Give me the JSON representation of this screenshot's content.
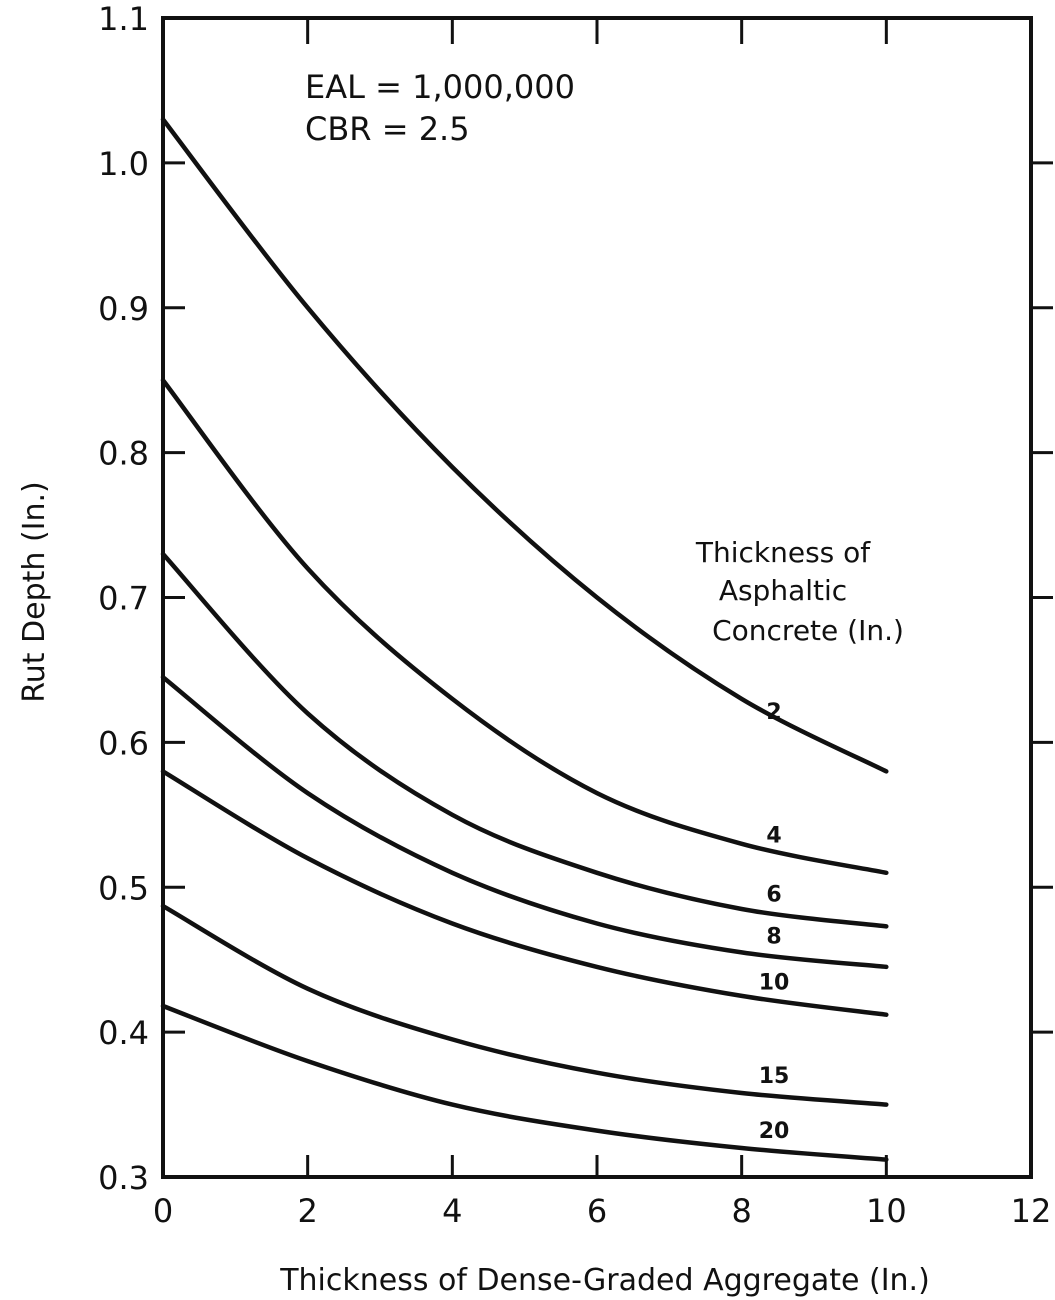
{
  "chart_data": {
    "type": "line",
    "xlabel": "Thickness of Dense-Graded Aggregate (In.)",
    "ylabel": "Rut Depth (In.)",
    "xlim": [
      0,
      12
    ],
    "ylim": [
      0.3,
      1.1
    ],
    "x_ticks": [
      0,
      2,
      4,
      6,
      8,
      10,
      12
    ],
    "x_tick_labels": [
      "0",
      "2",
      "4",
      "6",
      "8",
      "10",
      "12"
    ],
    "y_ticks": [
      0.3,
      0.4,
      0.5,
      0.6,
      0.7,
      0.8,
      0.9,
      1.0,
      1.1
    ],
    "y_tick_labels": [
      "0.3",
      "0.4",
      "0.5",
      "0.6",
      "0.7",
      "0.8",
      "0.9",
      "1.0",
      "1.1"
    ],
    "grid": false,
    "annotations": [
      "EAL = 1,000,000",
      "CBR = 2.5"
    ],
    "legend_title": [
      "Thickness of",
      "Asphaltic",
      "Concrete (In.)"
    ],
    "x": [
      0,
      2,
      4,
      6,
      8,
      10
    ],
    "series": [
      {
        "name": "2",
        "values": [
          1.03,
          0.9,
          0.79,
          0.7,
          0.63,
          0.58
        ]
      },
      {
        "name": "4",
        "values": [
          0.85,
          0.72,
          0.63,
          0.565,
          0.53,
          0.51
        ]
      },
      {
        "name": "6",
        "values": [
          0.73,
          0.62,
          0.55,
          0.51,
          0.485,
          0.473
        ]
      },
      {
        "name": "8",
        "values": [
          0.645,
          0.565,
          0.51,
          0.475,
          0.455,
          0.445
        ]
      },
      {
        "name": "10",
        "values": [
          0.58,
          0.52,
          0.475,
          0.445,
          0.425,
          0.412
        ]
      },
      {
        "name": "15",
        "values": [
          0.487,
          0.43,
          0.395,
          0.372,
          0.358,
          0.35
        ]
      },
      {
        "name": "20",
        "values": [
          0.418,
          0.38,
          0.35,
          0.332,
          0.32,
          0.312
        ]
      }
    ]
  }
}
